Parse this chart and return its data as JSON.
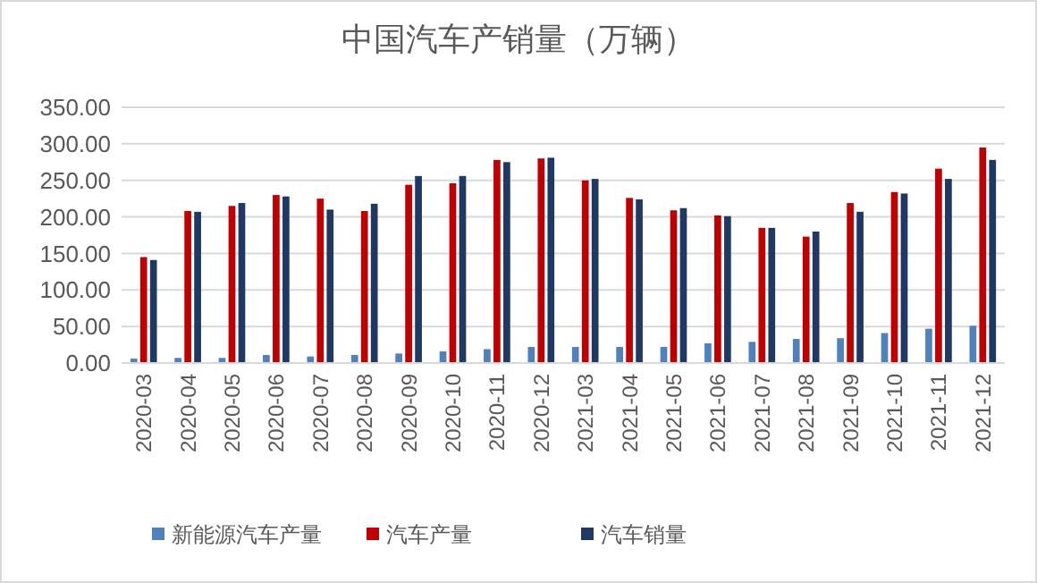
{
  "chart_data": {
    "type": "bar",
    "title": "中国汽车产销量（万辆）",
    "categories": [
      "2020-03",
      "2020-04",
      "2020-05",
      "2020-06",
      "2020-07",
      "2020-08",
      "2020-09",
      "2020-10",
      "2020-11",
      "2020-12",
      "2021-03",
      "2021-04",
      "2021-05",
      "2021-06",
      "2021-07",
      "2021-08",
      "2021-09",
      "2021-10",
      "2021-11",
      "2021-12"
    ],
    "series": [
      {
        "name": "新能源汽车产量",
        "color": "#4f81bd",
        "values": [
          6,
          7,
          7,
          11,
          9,
          11,
          13,
          16,
          19,
          22,
          22,
          22,
          22,
          27,
          29,
          33,
          34,
          41,
          47,
          51
        ]
      },
      {
        "name": "汽车产量",
        "color": "#c00000",
        "values": [
          145,
          208,
          215,
          230,
          225,
          208,
          244,
          246,
          278,
          280,
          250,
          226,
          209,
          202,
          185,
          173,
          219,
          234,
          266,
          295
        ]
      },
      {
        "name": "汽车销量",
        "color": "#1f3864",
        "values": [
          141,
          207,
          219,
          228,
          210,
          218,
          256,
          256,
          275,
          281,
          252,
          224,
          212,
          201,
          185,
          180,
          207,
          232,
          252,
          278
        ]
      }
    ],
    "ylim": [
      0,
      350
    ],
    "yticks": [
      {
        "value": 0,
        "label": "0.00"
      },
      {
        "value": 50,
        "label": "50.00"
      },
      {
        "value": 100,
        "label": "100.00"
      },
      {
        "value": 150,
        "label": "150.00"
      },
      {
        "value": 200,
        "label": "200.00"
      },
      {
        "value": 250,
        "label": "250.00"
      },
      {
        "value": 300,
        "label": "300.00"
      },
      {
        "value": 350,
        "label": "350.00"
      }
    ],
    "grid": "y",
    "legend": "bottom"
  }
}
